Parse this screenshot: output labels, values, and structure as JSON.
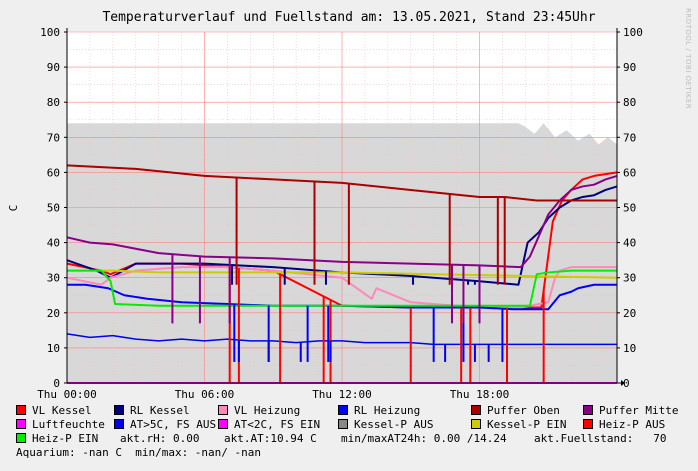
{
  "chart_data": {
    "type": "line",
    "title": "Temperaturverlauf und Fuellstand am: 13.05.2021, Stand 23:45Uhr",
    "ylabel": "C",
    "ylim": [
      0,
      100
    ],
    "xlim": [
      0,
      24
    ],
    "y_ticks": [
      0,
      10,
      20,
      30,
      40,
      50,
      60,
      70,
      80,
      90,
      100
    ],
    "x_ticks": [
      {
        "x": 0,
        "label": "Thu 00:00"
      },
      {
        "x": 6,
        "label": "Thu 06:00"
      },
      {
        "x": 12,
        "label": "Thu 12:00"
      },
      {
        "x": 18,
        "label": "Thu 18:00"
      }
    ],
    "grid": true,
    "fill_area": {
      "name": "Fuellstand",
      "color": "#d8d8d8",
      "x": [
        0,
        0.01,
        19.7,
        20.0,
        20.4,
        20.8,
        21.3,
        21.8,
        22.3,
        22.8,
        23.2,
        23.6,
        24
      ],
      "values": [
        74,
        74,
        74,
        73,
        71,
        74,
        70,
        72,
        69,
        71,
        68,
        70,
        68
      ]
    },
    "series": [
      {
        "name": "VL Kessel",
        "color": "#ff0000",
        "width": 2,
        "x": [
          0,
          1.5,
          1.9,
          3.0,
          5.0,
          7.0,
          9.0,
          12.0,
          15.0,
          18.0,
          19.5,
          20.7,
          21.2,
          21.6,
          22.0,
          22.5,
          23.0,
          23.5,
          24
        ],
        "values": [
          34,
          32,
          31,
          34,
          34,
          33,
          32,
          22,
          21.5,
          21.5,
          21.5,
          21.5,
          46,
          52,
          55,
          58,
          59,
          59.5,
          60
        ]
      },
      {
        "name": "RL Kessel",
        "color": "#000080",
        "width": 2,
        "x": [
          0,
          1.3,
          1.9,
          3.0,
          6.0,
          9.0,
          12.0,
          15.0,
          18.0,
          19.7,
          20.1,
          20.6,
          21.0,
          21.5,
          22.0,
          22.5,
          23.0,
          23.5,
          24
        ],
        "values": [
          35,
          32,
          30,
          34,
          34,
          33,
          31.5,
          30.5,
          29,
          28,
          40,
          43,
          47,
          50,
          52,
          53,
          53.5,
          55,
          56
        ]
      },
      {
        "name": "VL Heizung",
        "color": "#ff88bb",
        "width": 2,
        "x": [
          0,
          1.5,
          1.9,
          3.0,
          5.0,
          7.0,
          9.0,
          12.0,
          13.3,
          13.5,
          15.0,
          17.0,
          18.5,
          19.8,
          21.0,
          21.3,
          21.5,
          22.0,
          23.0,
          24
        ],
        "values": [
          30,
          28,
          30,
          32,
          33,
          33,
          32,
          30,
          24,
          27,
          23,
          22,
          21.5,
          21.5,
          23,
          30,
          32,
          33,
          33,
          33
        ]
      },
      {
        "name": "RL Heizung",
        "color": "#0000ff",
        "width": 2,
        "x": [
          0,
          0.8,
          1.3,
          1.8,
          2.5,
          3.5,
          5.0,
          7.0,
          9.0,
          12.0,
          15.0,
          18.0,
          19.5,
          20.2,
          21.0,
          21.5,
          22.0,
          22.3,
          23.0,
          24
        ],
        "values": [
          28,
          28,
          27.5,
          27,
          25,
          24,
          23,
          22.5,
          22,
          22,
          21.5,
          21.5,
          21,
          21,
          21,
          25,
          26,
          27,
          28,
          28
        ]
      },
      {
        "name": "Puffer Oben",
        "color": "#aa0000",
        "width": 2,
        "x": [
          0,
          3,
          6,
          9,
          12,
          15,
          18,
          18.9,
          19.1,
          20.5,
          24
        ],
        "values": [
          62,
          61,
          59,
          58,
          57,
          55,
          53,
          53,
          53,
          52,
          52
        ]
      },
      {
        "name": "Puffer Mitte",
        "color": "#880088",
        "width": 2,
        "x": [
          0,
          1.0,
          2.0,
          4.0,
          6.0,
          9.0,
          12.0,
          15.0,
          18.0,
          19.8,
          20.2,
          20.6,
          21.0,
          21.5,
          22.0,
          22.5,
          23.0,
          23.5,
          24
        ],
        "values": [
          41.5,
          40,
          39.5,
          37,
          36,
          35.5,
          34.5,
          34,
          33.5,
          33,
          36,
          42,
          48,
          52,
          55,
          56,
          56.5,
          58,
          59
        ]
      },
      {
        "name": "Luftfeuchte",
        "color": "#ff00ff",
        "width": 2,
        "x": [
          0,
          24
        ],
        "values": [
          0,
          0
        ]
      },
      {
        "name": "AT>5C, FS AUS",
        "color": "#0000ee",
        "width": 1.5,
        "x": [
          0,
          1,
          2,
          3,
          4,
          5,
          6,
          7,
          8,
          9,
          10,
          11,
          12,
          13,
          14,
          15,
          16,
          17,
          18,
          19,
          20,
          21,
          22,
          23,
          24
        ],
        "values": [
          14,
          13,
          13.5,
          12.5,
          12,
          12.5,
          12,
          12.5,
          12,
          12,
          11.5,
          12,
          12,
          11.5,
          11.5,
          11.5,
          11,
          11,
          11,
          11,
          11,
          11,
          11,
          11,
          11
        ]
      },
      {
        "name": "AT<2C, FS EIN",
        "color": "#ff00ff",
        "width": 1,
        "x": [],
        "values": []
      },
      {
        "name": "Kessel-P AUS",
        "color": "#888888",
        "width": 1,
        "x": [],
        "values": []
      },
      {
        "name": "Kessel-P EIN",
        "color": "#cccc00",
        "width": 2,
        "x": [
          0,
          2,
          4,
          8,
          12,
          16,
          20,
          24
        ],
        "values": [
          32,
          32,
          31.5,
          31.5,
          31.5,
          31,
          30.5,
          30
        ]
      },
      {
        "name": "Heiz-P AUS",
        "color": "#ff0000",
        "width": 1,
        "x": [],
        "values": []
      },
      {
        "name": "Heiz-P EIN",
        "color": "#00ee00",
        "width": 2,
        "x": [
          0,
          1.5,
          1.9,
          2.1,
          4,
          8,
          12,
          16,
          20.2,
          20.5,
          21,
          22,
          24
        ],
        "values": [
          32,
          32,
          29,
          22.5,
          22,
          22,
          22,
          22,
          22,
          31,
          31.5,
          32,
          32
        ]
      }
    ],
    "dips": [
      {
        "series": "VL Kessel",
        "at": [
          7.1,
          7.5,
          9.3,
          11.2,
          11.5,
          15.0,
          17.2,
          17.6,
          19.2,
          20.8
        ],
        "to": 0
      },
      {
        "series": "RL Kessel",
        "at": [
          7.2,
          9.5,
          11.3,
          15.1,
          17.5,
          17.8,
          19.3
        ],
        "to": 28
      },
      {
        "series": "RL Heizung",
        "at": [
          7.3,
          8.8,
          10.5,
          11.4,
          16.0,
          17.3,
          19.0
        ],
        "to": 6
      },
      {
        "series": "Puffer Oben",
        "at": [
          7.4,
          10.8,
          12.3,
          16.7,
          18.8,
          19.1
        ],
        "to": 28
      },
      {
        "series": "Puffer Mitte",
        "at": [
          4.6,
          5.8,
          7.1,
          16.8,
          17.3,
          18.0
        ],
        "to": 17
      },
      {
        "series": "AT>5C, FS AUS",
        "at": [
          7.5,
          8.8,
          10.2,
          11.5,
          16.5,
          17.8,
          18.4
        ],
        "to": 6
      }
    ]
  },
  "side_text": "RRDTOOL / TOBI OETIKER",
  "legend": {
    "rows": [
      [
        {
          "label": "VL Kessel",
          "color": "#ff0000"
        },
        {
          "label": "RL Kessel",
          "color": "#000080"
        },
        {
          "label": "VL Heizung",
          "color": "#ff88bb"
        },
        {
          "label": "RL Heizung",
          "color": "#0000ff"
        },
        {
          "label": "Puffer Oben",
          "color": "#aa0000"
        },
        {
          "label": "Puffer Mitte",
          "color": "#880088"
        }
      ],
      [
        {
          "label": "Luftfeuchte",
          "color": "#ff00ff"
        },
        {
          "label": "AT>5C, FS AUS",
          "color": "#0000ee"
        },
        {
          "label": "AT<2C, FS EIN",
          "color": "#ff00ff"
        },
        {
          "label": "Kessel-P AUS",
          "color": "#888888"
        },
        {
          "label": "Kessel-P EIN",
          "color": "#cccc00"
        },
        {
          "label": "Heiz-P AUS",
          "color": "#ff0000"
        }
      ]
    ],
    "heiz_p_ein": {
      "label": "Heiz-P EIN",
      "color": "#00ee00"
    },
    "rh": "akt.rH: 0.00",
    "at": "akt.AT:10.94 C",
    "minmax24": "min/maxAT24h: 0.00 /14.24",
    "fuellstand": "akt.Fuellstand:   70",
    "aquarium": "Aquarium: -nan C  min/max: -nan/ -nan"
  }
}
